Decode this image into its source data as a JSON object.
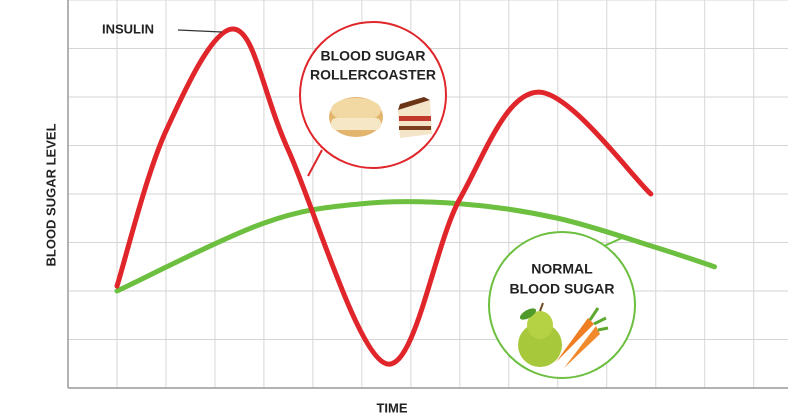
{
  "chart_data": {
    "type": "line",
    "x_label": "TIME",
    "y_label": "BLOOD SUGAR LEVEL",
    "xlim": [
      0,
      14.7
    ],
    "ylim": [
      0,
      8
    ],
    "xticks": [
      0,
      1,
      2,
      3,
      4,
      5,
      6,
      7,
      8,
      9,
      10,
      11,
      12,
      13,
      14
    ],
    "yticks": [
      0,
      1,
      2,
      3,
      4,
      5,
      6,
      7,
      8
    ],
    "grid": true,
    "series": [
      {
        "name": "INSULIN",
        "color": "#e0262b",
        "x": [
          1,
          2,
          3.4,
          4.5,
          6.5,
          8,
          9.6,
          11.9
        ],
        "values": [
          2.1,
          5.3,
          7.4,
          4.9,
          0.5,
          3.9,
          6.1,
          4.0
        ]
      },
      {
        "color": "#6cbf3f",
        "x": [
          1,
          4,
          6,
          8,
          10,
          12,
          13.2
        ],
        "values": [
          2.0,
          3.4,
          3.8,
          3.8,
          3.5,
          2.9,
          2.5
        ]
      }
    ],
    "annotations": [
      {
        "lines": [
          "BLOOD SUGAR",
          "ROLLERCOASTER"
        ],
        "color": "#e0262b"
      },
      {
        "lines": [
          "NORMAL",
          "BLOOD SUGAR"
        ],
        "color": "#6cbf3f"
      }
    ]
  }
}
